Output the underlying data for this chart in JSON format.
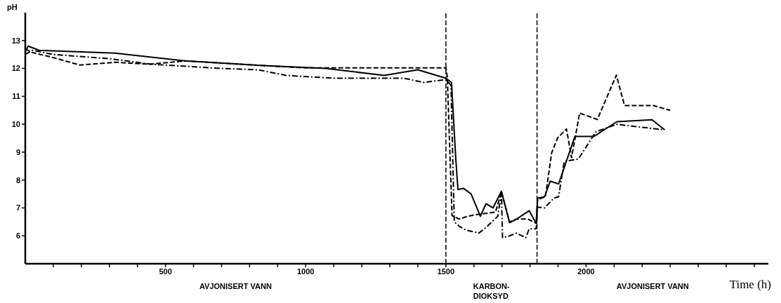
{
  "chart_data": {
    "type": "line",
    "xlabel": "Time (h)",
    "ylabel": "pH",
    "xlim": [
      0,
      2650
    ],
    "ylim": [
      5,
      14
    ],
    "xticks": [
      {
        "value": 100,
        "label": null
      },
      {
        "value": 200,
        "label": null
      },
      {
        "value": 300,
        "label": null
      },
      {
        "value": 400,
        "label": null
      },
      500,
      {
        "value": 600,
        "label": null
      },
      {
        "value": 700,
        "label": null
      },
      {
        "value": 800,
        "label": null
      },
      {
        "value": 900,
        "label": null
      },
      1000,
      {
        "value": 1100,
        "label": null
      },
      {
        "value": 1200,
        "label": null
      },
      {
        "value": 1300,
        "label": null
      },
      {
        "value": 1400,
        "label": null
      },
      1500,
      {
        "value": 1600,
        "label": null
      },
      {
        "value": 1700,
        "label": null
      },
      {
        "value": 1800,
        "label": null
      },
      {
        "value": 1900,
        "label": null
      },
      2000,
      {
        "value": 2100,
        "label": null
      },
      {
        "value": 2200,
        "label": null
      },
      {
        "value": 2300,
        "label": null
      },
      {
        "value": 2400,
        "label": null
      },
      {
        "value": 2500,
        "label": null
      },
      {
        "value": 2600,
        "label": null
      }
    ],
    "yticks": [
      6,
      7,
      8,
      9,
      10,
      11,
      12,
      13
    ],
    "grid": false,
    "marker": "none",
    "ref_lines": [
      {
        "axis": "x",
        "value": 1500,
        "line_style": "dashed"
      },
      {
        "axis": "x",
        "value": 1825,
        "line_style": "dashed"
      }
    ],
    "annotations": [
      "AVJONISERT VANN",
      "KARBON-\nDIOKSYD",
      "AVJONISERT VANN"
    ],
    "series": [
      {
        "color": "#000000",
        "line_style": "solid",
        "x": [
          0,
          10,
          50,
          320,
          570,
          850,
          1070,
          1280,
          1400,
          1500,
          1520,
          1535,
          1543,
          1563,
          1590,
          1623,
          1643,
          1668,
          1698,
          1727,
          1752,
          1797,
          1822,
          1827,
          1852,
          1872,
          1902,
          1960,
          2027,
          2110,
          2235,
          2280
        ],
        "values": [
          12.6,
          12.8,
          12.65,
          12.55,
          12.27,
          12.1,
          12.0,
          11.75,
          11.95,
          11.65,
          11.5,
          8.8,
          7.66,
          7.7,
          7.5,
          6.7,
          7.15,
          7.0,
          7.6,
          6.47,
          6.6,
          6.9,
          6.45,
          7.35,
          7.4,
          7.96,
          7.86,
          9.56,
          9.56,
          10.09,
          10.16,
          9.8
        ]
      },
      {
        "color": "#000000",
        "line_style": "dashed",
        "x": [
          0,
          25,
          88,
          195,
          320,
          445,
          570,
          850,
          1000,
          1500,
          1505,
          1522,
          1548,
          1577,
          1617,
          1677,
          1698,
          1727,
          1752,
          1792,
          1822,
          1827,
          1855,
          1877,
          1898,
          1930,
          1948,
          1977,
          2040,
          2108,
          2137,
          2240,
          2300
        ],
        "values": [
          12.7,
          12.57,
          12.42,
          12.12,
          12.22,
          12.15,
          12.27,
          12.1,
          12.02,
          12.02,
          11.7,
          6.72,
          6.6,
          6.7,
          6.77,
          6.85,
          7.58,
          6.5,
          6.6,
          6.6,
          6.45,
          7.3,
          7.4,
          8.97,
          9.5,
          9.83,
          8.8,
          10.4,
          10.17,
          11.76,
          10.67,
          10.67,
          10.5
        ]
      },
      {
        "color": "#000000",
        "line_style": "dashdot",
        "x": [
          0,
          25,
          100,
          300,
          450,
          700,
          830,
          930,
          1100,
          1350,
          1420,
          1500,
          1518,
          1530,
          1548,
          1573,
          1618,
          1643,
          1685,
          1698,
          1702,
          1727,
          1752,
          1785,
          1797,
          1822,
          1827,
          1852,
          1885,
          1902,
          1922,
          1972,
          2035,
          2110,
          2148,
          2280
        ],
        "values": [
          12.5,
          12.65,
          12.5,
          12.35,
          12.15,
          12.0,
          11.95,
          11.75,
          11.65,
          11.65,
          11.5,
          11.6,
          11.4,
          6.5,
          6.34,
          6.2,
          6.1,
          6.3,
          6.7,
          7.55,
          5.93,
          6.0,
          6.1,
          5.93,
          6.25,
          6.25,
          7.03,
          7.0,
          7.35,
          7.4,
          8.67,
          8.75,
          9.73,
          10.0,
          9.95,
          9.8
        ]
      }
    ]
  }
}
